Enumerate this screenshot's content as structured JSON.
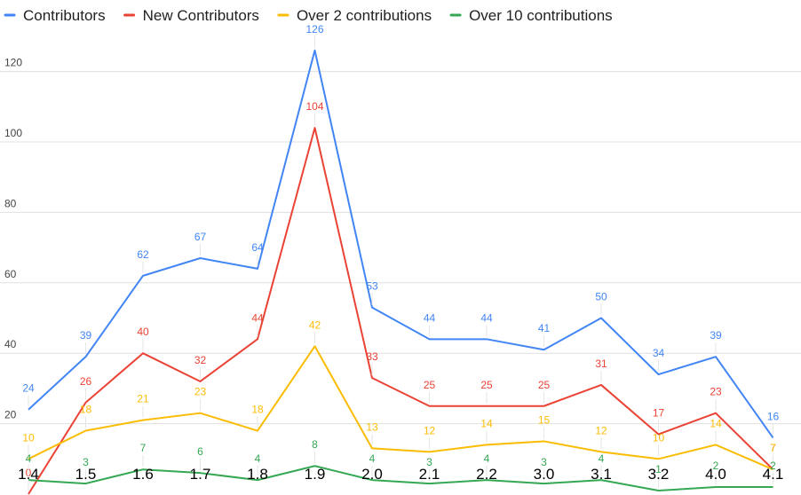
{
  "chart_data": {
    "type": "line",
    "title": "",
    "xlabel": "",
    "ylabel": "",
    "categories": [
      "1.4",
      "1.5",
      "1.6",
      "1.7",
      "1.8",
      "1.9",
      "2.0",
      "2.1",
      "2.2",
      "3.0",
      "3.1",
      "3.2",
      "4.0",
      "4.1"
    ],
    "ylim": [
      0,
      130
    ],
    "yticks": [
      "20",
      "40",
      "60",
      "80",
      "100",
      "120"
    ],
    "grid": true,
    "legend_position": "top",
    "series": [
      {
        "name": "Contributors",
        "color": "#4285f4",
        "values": [
          24,
          39,
          62,
          67,
          64,
          126,
          53,
          44,
          44,
          41,
          50,
          34,
          39,
          16
        ]
      },
      {
        "name": "New Contributors",
        "color": "#ea4335",
        "values": [
          0,
          26,
          40,
          32,
          44,
          104,
          33,
          25,
          25,
          25,
          31,
          17,
          23,
          7
        ]
      },
      {
        "name": "Over 2 contributions",
        "color": "#fbbc04",
        "values": [
          10,
          18,
          21,
          23,
          18,
          42,
          13,
          12,
          14,
          15,
          12,
          10,
          14,
          7
        ]
      },
      {
        "name": "Over 10 contributions",
        "color": "#34a853",
        "values": [
          4,
          3,
          7,
          6,
          4,
          8,
          4,
          3,
          4,
          3,
          4,
          1,
          2,
          2
        ]
      }
    ]
  }
}
